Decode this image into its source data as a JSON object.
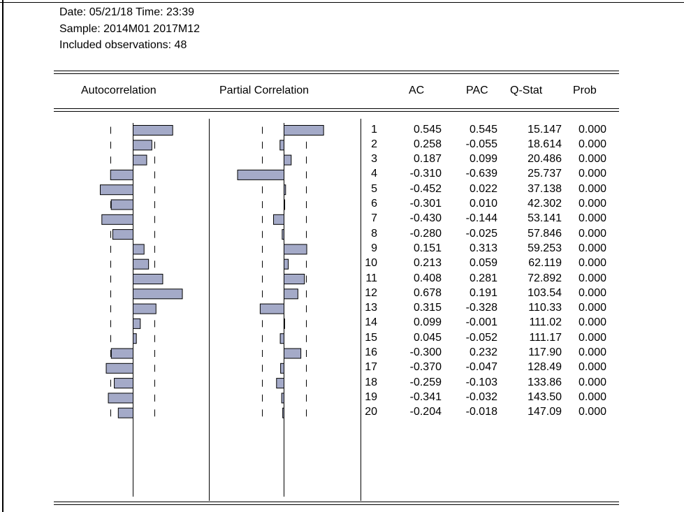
{
  "header": {
    "date_time": "Date: 05/21/18   Time: 23:39",
    "sample": "Sample: 2014M01 2017M12",
    "observations": "Included observations: 48"
  },
  "columns": {
    "autocorrelation": "Autocorrelation",
    "partial_correlation": "Partial Correlation",
    "ac": "AC",
    "pac": "PAC",
    "qstat": "Q-Stat",
    "prob": "Prob"
  },
  "colors": {
    "bar_fill": "#a4aac8",
    "bar_stroke": "#000000"
  },
  "chart_data": {
    "type": "bar",
    "categories": [
      1,
      2,
      3,
      4,
      5,
      6,
      7,
      8,
      9,
      10,
      11,
      12,
      13,
      14,
      15,
      16,
      17,
      18,
      19,
      20
    ],
    "series": [
      {
        "name": "AC",
        "values": [
          0.545,
          0.258,
          0.187,
          -0.31,
          -0.452,
          -0.301,
          -0.43,
          -0.28,
          0.151,
          0.213,
          0.408,
          0.678,
          0.315,
          0.099,
          0.045,
          -0.3,
          -0.37,
          -0.259,
          -0.341,
          -0.204
        ]
      },
      {
        "name": "PAC",
        "values": [
          0.545,
          -0.055,
          0.099,
          -0.639,
          0.022,
          0.01,
          -0.144,
          -0.025,
          0.313,
          0.059,
          0.281,
          0.191,
          -0.328,
          -0.001,
          -0.052,
          0.232,
          -0.047,
          -0.103,
          -0.032,
          -0.018
        ]
      }
    ],
    "rows": [
      {
        "lag": "1",
        "ac": "0.545",
        "pac": "0.545",
        "q": "15.147",
        "prob": "0.000"
      },
      {
        "lag": "2",
        "ac": "0.258",
        "pac": "-0.055",
        "q": "18.614",
        "prob": "0.000"
      },
      {
        "lag": "3",
        "ac": "0.187",
        "pac": "0.099",
        "q": "20.486",
        "prob": "0.000"
      },
      {
        "lag": "4",
        "ac": "-0.310",
        "pac": "-0.639",
        "q": "25.737",
        "prob": "0.000"
      },
      {
        "lag": "5",
        "ac": "-0.452",
        "pac": "0.022",
        "q": "37.138",
        "prob": "0.000"
      },
      {
        "lag": "6",
        "ac": "-0.301",
        "pac": "0.010",
        "q": "42.302",
        "prob": "0.000"
      },
      {
        "lag": "7",
        "ac": "-0.430",
        "pac": "-0.144",
        "q": "53.141",
        "prob": "0.000"
      },
      {
        "lag": "8",
        "ac": "-0.280",
        "pac": "-0.025",
        "q": "57.846",
        "prob": "0.000"
      },
      {
        "lag": "9",
        "ac": "0.151",
        "pac": "0.313",
        "q": "59.253",
        "prob": "0.000"
      },
      {
        "lag": "10",
        "ac": "0.213",
        "pac": "0.059",
        "q": "62.119",
        "prob": "0.000"
      },
      {
        "lag": "11",
        "ac": "0.408",
        "pac": "0.281",
        "q": "72.892",
        "prob": "0.000"
      },
      {
        "lag": "12",
        "ac": "0.678",
        "pac": "0.191",
        "q": "103.54",
        "prob": "0.000"
      },
      {
        "lag": "13",
        "ac": "0.315",
        "pac": "-0.328",
        "q": "110.33",
        "prob": "0.000"
      },
      {
        "lag": "14",
        "ac": "0.099",
        "pac": "-0.001",
        "q": "111.02",
        "prob": "0.000"
      },
      {
        "lag": "15",
        "ac": "0.045",
        "pac": "-0.052",
        "q": "111.17",
        "prob": "0.000"
      },
      {
        "lag": "16",
        "ac": "-0.300",
        "pac": "0.232",
        "q": "117.90",
        "prob": "0.000"
      },
      {
        "lag": "17",
        "ac": "-0.370",
        "pac": "-0.047",
        "q": "128.49",
        "prob": "0.000"
      },
      {
        "lag": "18",
        "ac": "-0.259",
        "pac": "-0.103",
        "q": "133.86",
        "prob": "0.000"
      },
      {
        "lag": "19",
        "ac": "-0.341",
        "pac": "-0.032",
        "q": "143.50",
        "prob": "0.000"
      },
      {
        "lag": "20",
        "ac": "-0.204",
        "pac": "-0.018",
        "q": "147.09",
        "prob": "0.000"
      }
    ]
  }
}
